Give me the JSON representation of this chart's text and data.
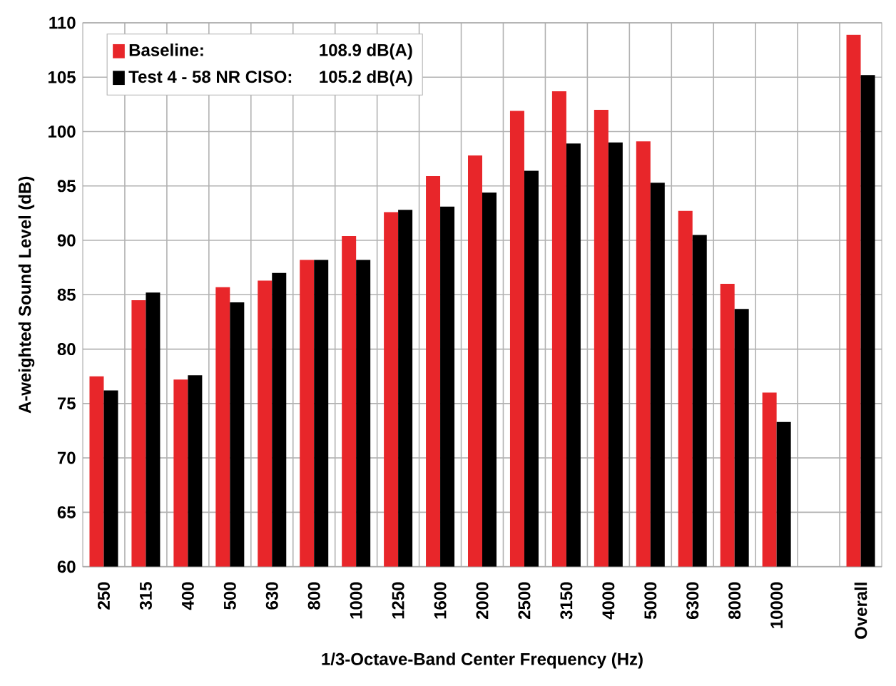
{
  "chart_data": {
    "type": "bar",
    "xlabel": "1/3-Octave-Band Center Frequency (Hz)",
    "ylabel": "A-weighted Sound Level (dB)",
    "categories": [
      "250",
      "315",
      "400",
      "500",
      "630",
      "800",
      "1000",
      "1250",
      "1600",
      "2000",
      "2500",
      "3150",
      "4000",
      "5000",
      "6300",
      "8000",
      "10000",
      null,
      "Overall"
    ],
    "series": [
      {
        "name": "Baseline:",
        "color": "#e8262a",
        "values": [
          77.5,
          84.5,
          77.2,
          85.7,
          86.3,
          88.2,
          90.4,
          92.6,
          95.9,
          97.8,
          101.9,
          103.7,
          102.0,
          99.1,
          92.7,
          86.0,
          76.0,
          null,
          108.9
        ]
      },
      {
        "name": "Test 4 - 58 NR CISO:",
        "color": "#000000",
        "values": [
          76.2,
          85.2,
          77.6,
          84.3,
          87.0,
          88.2,
          88.2,
          92.8,
          93.1,
          94.4,
          96.4,
          98.9,
          99.0,
          95.3,
          90.5,
          83.7,
          73.3,
          null,
          105.2
        ]
      }
    ],
    "annotations": [
      "108.9 dB(A)",
      "105.2 dB(A)"
    ],
    "ylim": [
      60,
      110
    ],
    "yticks": [
      60,
      65,
      70,
      75,
      80,
      85,
      90,
      95,
      100,
      105,
      110
    ],
    "grid": true,
    "legend": "top left"
  }
}
